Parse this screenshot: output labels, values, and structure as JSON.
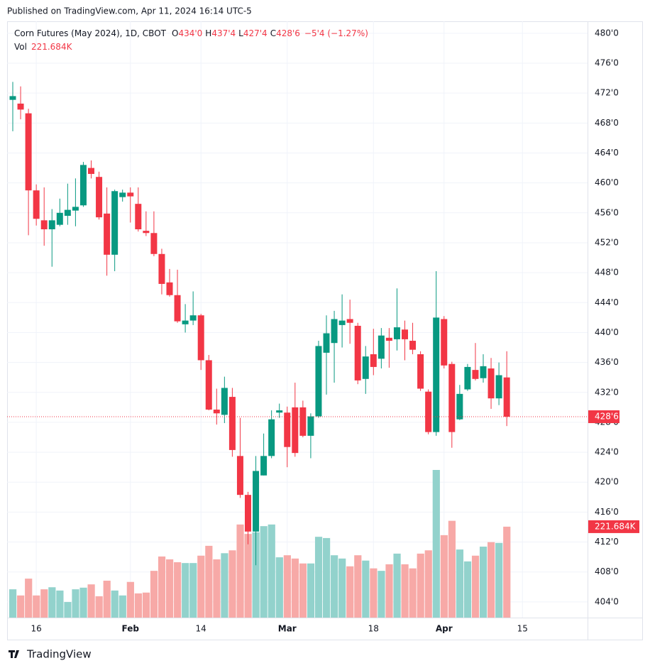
{
  "header": "Published on TradingView.com, Apr 11, 2024 16:14 UTC-5",
  "footer": "TradingView",
  "chart_data": {
    "type": "candlestick",
    "title": "Corn Futures (May 2024), 1D, CBOT",
    "legend_ohlc": [
      {
        "key": "O",
        "value": "434'0"
      },
      {
        "key": "H",
        "value": "437'4"
      },
      {
        "key": "L",
        "value": "427'4"
      },
      {
        "key": "C",
        "value": "428'6"
      }
    ],
    "change": "−5'4 (−1.27%)",
    "volume_name": "Vol",
    "volume_legend": "221.684K",
    "last_price_label": "428'6",
    "up_color": "#089981",
    "down_color": "#f23645",
    "volume_up_color": "#92d2cc",
    "volume_down_color": "#f7a9a7",
    "open": [
      471.1,
      470.6,
      469.3,
      459.0,
      455.0,
      453.8,
      454.4,
      455.6,
      456.3,
      457.0,
      462.0,
      460.8,
      455.9,
      450.4,
      458.1,
      458.7,
      457.2,
      453.6,
      453.3,
      450.5,
      446.7,
      445.0,
      441.1,
      441.6,
      442.3,
      436.3,
      429.7,
      429.0,
      431.4,
      423.5,
      418.3,
      413.4,
      420.9,
      423.5,
      429.3,
      429.3,
      430.0,
      430.0,
      426.2,
      428.8,
      437.3,
      438.6,
      441.0,
      441.8,
      440.9,
      433.8,
      437.1,
      436.5,
      439.3,
      439.1,
      440.4,
      438.9,
      437.1,
      432.1,
      426.7,
      441.8,
      435.8,
      428.4,
      432.4,
      435.0,
      433.9,
      435.2,
      431.2,
      434.0
    ],
    "high": [
      473.5,
      472.9,
      469.9,
      459.8,
      459.4,
      456.5,
      457.9,
      459.9,
      460.6,
      462.8,
      463.0,
      461.5,
      459.4,
      459.1,
      459.1,
      459.4,
      459.4,
      456.2,
      456.2,
      451.2,
      448.5,
      448.4,
      443.8,
      445.5,
      442.5,
      437.0,
      432.5,
      434.1,
      432.6,
      428.6,
      418.7,
      423.5,
      426.5,
      429.6,
      430.5,
      430.1,
      433.3,
      430.9,
      429.2,
      438.9,
      442.3,
      442.9,
      445.1,
      444.4,
      441.3,
      438.2,
      440.5,
      440.6,
      440.6,
      445.9,
      441.6,
      441.3,
      437.5,
      432.4,
      448.2,
      442.2,
      436.1,
      433.0,
      435.8,
      438.6,
      437.1,
      436.6,
      436.0,
      437.5
    ],
    "low": [
      466.9,
      468.5,
      453.0,
      454.3,
      451.6,
      448.8,
      454.2,
      454.4,
      454.2,
      456.8,
      460.6,
      455.1,
      447.6,
      448.2,
      457.5,
      454.7,
      453.5,
      452.9,
      450.2,
      445.1,
      444.8,
      441.3,
      440.0,
      441.0,
      435.0,
      429.6,
      427.7,
      427.9,
      423.4,
      417.9,
      411.7,
      408.9,
      420.9,
      423.2,
      428.6,
      422.0,
      423.4,
      426.0,
      423.2,
      428.6,
      431.7,
      433.3,
      438.0,
      438.5,
      433.1,
      431.8,
      434.3,
      435.2,
      435.3,
      437.6,
      436.3,
      437.1,
      432.2,
      426.4,
      426.2,
      435.2,
      424.6,
      428.3,
      432.2,
      433.6,
      433.3,
      429.8,
      430.3,
      427.5
    ],
    "close": [
      471.6,
      469.8,
      459.0,
      455.2,
      453.8,
      455.0,
      456.0,
      456.4,
      456.8,
      462.4,
      461.2,
      455.4,
      450.4,
      458.9,
      458.7,
      458.2,
      453.8,
      453.3,
      450.5,
      446.5,
      445.0,
      441.5,
      441.6,
      442.3,
      436.3,
      429.7,
      429.2,
      432.6,
      424.3,
      418.3,
      413.4,
      421.5,
      423.5,
      428.4,
      429.6,
      424.7,
      423.9,
      426.2,
      428.8,
      438.2,
      439.9,
      441.8,
      441.6,
      441.3,
      433.6,
      436.8,
      435.4,
      439.6,
      438.9,
      440.7,
      439.1,
      437.7,
      432.5,
      426.7,
      442.0,
      435.6,
      426.7,
      431.8,
      435.4,
      433.8,
      435.5,
      431.2,
      434.3,
      428.75
    ],
    "volume": [
      69000,
      54000,
      95000,
      54000,
      69000,
      74000,
      66000,
      38000,
      69000,
      73000,
      81000,
      52000,
      90000,
      66000,
      54000,
      87000,
      59000,
      61000,
      114000,
      149000,
      142000,
      135000,
      133000,
      133000,
      151000,
      175000,
      142000,
      157000,
      164000,
      227000,
      204000,
      208000,
      223000,
      227000,
      147000,
      152000,
      144000,
      132000,
      132000,
      197000,
      194000,
      152000,
      144000,
      125000,
      152000,
      139000,
      120000,
      114000,
      130000,
      156000,
      130000,
      120000,
      156000,
      164000,
      360000,
      201000,
      236000,
      166000,
      137000,
      151000,
      173000,
      184000,
      182000,
      221684
    ],
    "value_labels": [
      null,
      null,
      null,
      null,
      null,
      null,
      null,
      null,
      null,
      null,
      null,
      null,
      null,
      null,
      null,
      null,
      null,
      null,
      null,
      null,
      null,
      null,
      null,
      null,
      null,
      null,
      null,
      null,
      null,
      null,
      null,
      null,
      null,
      null,
      null,
      null,
      null,
      null,
      null,
      null,
      null,
      null,
      null,
      null,
      null,
      null,
      null,
      null,
      null,
      null,
      null,
      null,
      null,
      null,
      null,
      null,
      null,
      null,
      null,
      null,
      null,
      null,
      null,
      "221.684K"
    ],
    "ylim": [
      401.9,
      481.6
    ],
    "yticks": [
      {
        "value": 404,
        "label": "404'0"
      },
      {
        "value": 408,
        "label": "408'0"
      },
      {
        "value": 412,
        "label": "412'0"
      },
      {
        "value": 416,
        "label": "416'0"
      },
      {
        "value": 420,
        "label": "420'0"
      },
      {
        "value": 424,
        "label": "424'0"
      },
      {
        "value": 428,
        "label": "428'0"
      },
      {
        "value": 432,
        "label": "432'0"
      },
      {
        "value": 436,
        "label": "436'0"
      },
      {
        "value": 440,
        "label": "440'0"
      },
      {
        "value": 444,
        "label": "444'0"
      },
      {
        "value": 448,
        "label": "448'0"
      },
      {
        "value": 452,
        "label": "452'0"
      },
      {
        "value": 456,
        "label": "456'0"
      },
      {
        "value": 460,
        "label": "460'0"
      },
      {
        "value": 464,
        "label": "464'0"
      },
      {
        "value": 468,
        "label": "468'0"
      },
      {
        "value": 472,
        "label": "472'0"
      },
      {
        "value": 476,
        "label": "476'0"
      },
      {
        "value": 480,
        "label": "480'0"
      }
    ],
    "xticks": [
      {
        "value": 3,
        "label": "16"
      },
      {
        "value": 15,
        "label": "Feb"
      },
      {
        "value": 24,
        "label": "14"
      },
      {
        "value": 35,
        "label": "Mar"
      },
      {
        "value": 46,
        "label": "18"
      },
      {
        "value": 55,
        "label": "Apr"
      },
      {
        "value": 65,
        "label": "15"
      }
    ],
    "grid": true
  }
}
